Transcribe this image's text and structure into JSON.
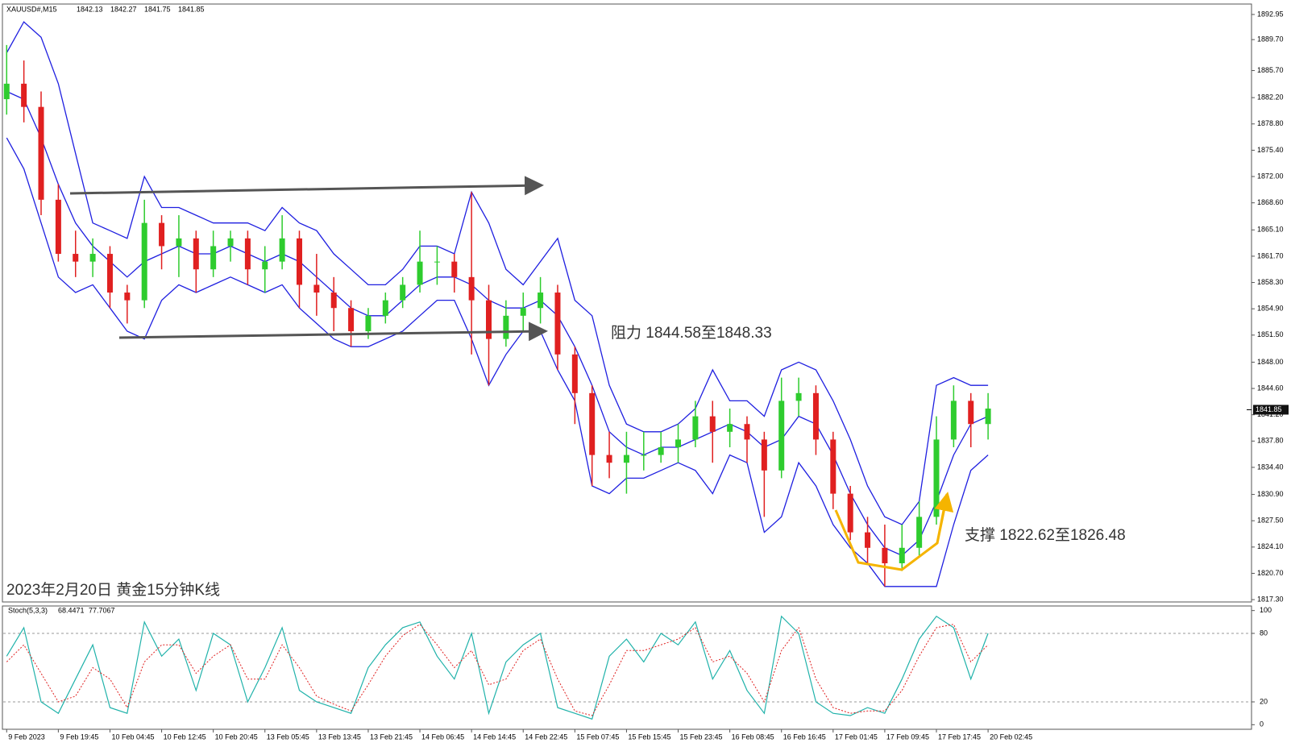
{
  "chart_data": {
    "type": "candlestick",
    "symbol": "XAUUSD#,M15",
    "ohlc": [
      1842.13,
      1842.27,
      1841.75,
      1841.85
    ],
    "title": "2023年2月20日 黄金15分钟K线",
    "annotations": [
      "阻力 1844.58至1848.33",
      "支撑 1822.62至1826.48"
    ],
    "up_color": "#2ecc2e",
    "down_color": "#e02020",
    "band_color": "#1f1fe0",
    "ylim": [
      1817.0,
      1894.3
    ],
    "yticks": [
      1892.95,
      {
        "value": 1889.7,
        "label": "1889.70"
      },
      {
        "value": 1885.7,
        "label": "1885.70"
      },
      {
        "value": 1882.2,
        "label": "1882.20"
      },
      {
        "value": 1878.8,
        "label": "1878.80"
      },
      {
        "value": 1875.4,
        "label": "1875.40"
      },
      {
        "value": 1872,
        "label": "1872.00"
      },
      {
        "value": 1868.6,
        "label": "1868.60"
      },
      {
        "value": 1865.1,
        "label": "1865.10"
      },
      {
        "value": 1861.7,
        "label": "1861.70"
      },
      {
        "value": 1858.3,
        "label": "1858.30"
      },
      {
        "value": 1854.9,
        "label": "1854.90"
      },
      {
        "value": 1851.5,
        "label": "1851.50"
      },
      {
        "value": 1848,
        "label": "1848.00"
      },
      {
        "value": 1844.6,
        "label": "1844.60"
      },
      {
        "value": 1841.2,
        "label": "1841.20"
      },
      {
        "value": 1837.8,
        "label": "1837.80"
      },
      {
        "value": 1834.4,
        "label": "1834.40"
      },
      {
        "value": 1830.9,
        "label": "1830.90"
      },
      {
        "value": 1827.5,
        "label": "1827.50"
      },
      {
        "value": 1824.1,
        "label": "1824.10"
      },
      {
        "value": 1820.7,
        "label": "1820.70"
      },
      {
        "value": 1817.3,
        "label": "1817.30"
      }
    ],
    "xlim": [
      -0.2,
      72.3
    ],
    "xticks": [
      {
        "value": 0,
        "label": "9 Feb 2023"
      },
      {
        "value": 3,
        "label": "9 Feb 19:45"
      },
      {
        "value": 6,
        "label": "10 Feb 04:45"
      },
      {
        "value": 9,
        "label": "10 Feb 12:45"
      },
      {
        "value": 12,
        "label": "10 Feb 20:45"
      },
      {
        "value": 15,
        "label": "13 Feb 05:45"
      },
      {
        "value": 18,
        "label": "13 Feb 13:45"
      },
      {
        "value": 21,
        "label": "13 Feb 21:45"
      },
      {
        "value": 24,
        "label": "14 Feb 06:45"
      },
      {
        "value": 27,
        "label": "14 Feb 14:45"
      },
      {
        "value": 30,
        "label": "14 Feb 22:45"
      },
      {
        "value": 33,
        "label": "15 Feb 07:45"
      },
      {
        "value": 36,
        "label": "15 Feb 15:45"
      },
      {
        "value": 39,
        "label": "15 Feb 23:45"
      },
      {
        "value": 42,
        "label": "16 Feb 08:45"
      },
      {
        "value": 45,
        "label": "16 Feb 16:45"
      },
      {
        "value": 48,
        "label": "17 Feb 01:45"
      },
      {
        "value": 51,
        "label": "17 Feb 09:45"
      },
      {
        "value": 54,
        "label": "17 Feb 17:45"
      },
      {
        "value": 57,
        "label": "20 Feb 02:45"
      }
    ],
    "candles": {
      "open": [
        1882,
        1884,
        1881,
        1869,
        1862,
        1861,
        1862,
        1857,
        1856,
        1866,
        1863,
        1864,
        1860,
        1863,
        1864,
        1860,
        1861,
        1864,
        1858,
        1857,
        1855,
        1852,
        1854,
        1856,
        1858,
        1861,
        1861,
        1859,
        1856,
        1851,
        1854,
        1855,
        1857,
        1849,
        1844,
        1836,
        1835,
        1836,
        1836,
        1837,
        1838,
        1841,
        1839,
        1840,
        1838,
        1834,
        1843,
        1844,
        1838,
        1831,
        1826,
        1824,
        1822,
        1824,
        1828,
        1838,
        1843,
        1840
      ],
      "high": [
        1889,
        1887,
        1883,
        1871,
        1865,
        1864,
        1863,
        1858,
        1869,
        1867,
        1867,
        1865,
        1865,
        1865,
        1865,
        1863,
        1867,
        1865,
        1862,
        1859,
        1856,
        1855,
        1857,
        1859,
        1865,
        1863,
        1862,
        1870,
        1858,
        1856,
        1857,
        1859,
        1858,
        1850,
        1845,
        1839,
        1839,
        1839,
        1839,
        1840,
        1843,
        1843,
        1842,
        1841,
        1839,
        1846,
        1846,
        1845,
        1839,
        1832,
        1828,
        1827,
        1827,
        1830,
        1841,
        1845,
        1844,
        1844
      ],
      "low": [
        1880,
        1879,
        1867,
        1861,
        1859,
        1859,
        1855,
        1853,
        1855,
        1860,
        1859,
        1857,
        1859,
        1861,
        1858,
        1857,
        1860,
        1855,
        1854,
        1852,
        1850,
        1851,
        1853,
        1855,
        1857,
        1858,
        1857,
        1849,
        1845,
        1850,
        1852,
        1853,
        1847,
        1840,
        1832,
        1833,
        1831,
        1834,
        1835,
        1835,
        1837,
        1835,
        1837,
        1835,
        1828,
        1833,
        1841,
        1836,
        1829,
        1825,
        1822,
        1819,
        1821,
        1823,
        1827,
        1837,
        1837,
        1838
      ],
      "close": [
        1884,
        1881,
        1869,
        1862,
        1861,
        1862,
        1857,
        1856,
        1866,
        1863,
        1864,
        1860,
        1863,
        1864,
        1860,
        1861,
        1864,
        1858,
        1857,
        1855,
        1852,
        1854,
        1856,
        1858,
        1861,
        1861,
        1859,
        1856,
        1851,
        1854,
        1855,
        1857,
        1849,
        1844,
        1836,
        1835,
        1836,
        1836,
        1837,
        1838,
        1841,
        1839,
        1840,
        1838,
        1834,
        1843,
        1844,
        1838,
        1831,
        1826,
        1824,
        1822,
        1824,
        1828,
        1838,
        1843,
        1840,
        1842
      ]
    },
    "bands": {
      "upper": [
        1888,
        1892,
        1890,
        1884,
        1875,
        1866,
        1865,
        1864,
        1872,
        1868,
        1868,
        1867,
        1866,
        1866,
        1866,
        1865,
        1868,
        1866,
        1865,
        1862,
        1860,
        1858,
        1858,
        1860,
        1863,
        1863,
        1862,
        1870,
        1866,
        1860,
        1858,
        1861,
        1864,
        1856,
        1854,
        1845,
        1840,
        1839,
        1839,
        1840,
        1842,
        1847,
        1843,
        1843,
        1841,
        1847,
        1848,
        1847,
        1843,
        1838,
        1832,
        1828,
        1827,
        1830,
        1845,
        1846,
        1845,
        1845
      ],
      "middle": [
        1883,
        1882,
        1877,
        1871,
        1866,
        1863,
        1861,
        1859,
        1861,
        1862,
        1863,
        1862,
        1862,
        1863,
        1862,
        1861,
        1862,
        1861,
        1859,
        1857,
        1855,
        1854,
        1854,
        1856,
        1858,
        1859,
        1859,
        1858,
        1856,
        1855,
        1855,
        1856,
        1854,
        1850,
        1845,
        1839,
        1837,
        1836,
        1837,
        1837,
        1838,
        1839,
        1840,
        1839,
        1837,
        1838,
        1841,
        1840,
        1836,
        1831,
        1827,
        1824,
        1823,
        1825,
        1830,
        1836,
        1840,
        1841
      ],
      "lower": [
        1877,
        1873,
        1866,
        1859,
        1857,
        1858,
        1855,
        1852,
        1851,
        1856,
        1858,
        1857,
        1858,
        1859,
        1858,
        1857,
        1858,
        1855,
        1853,
        1851,
        1850,
        1850,
        1851,
        1852,
        1854,
        1856,
        1856,
        1851,
        1845,
        1849,
        1852,
        1852,
        1847,
        1843,
        1832,
        1831,
        1833,
        1833,
        1834,
        1835,
        1834,
        1831,
        1836,
        1835,
        1826,
        1828,
        1835,
        1832,
        1827,
        1824,
        1822,
        1819,
        1819,
        1819,
        1819,
        1827,
        1834,
        1836
      ]
    },
    "stoch_label": "Stoch(5,3,3)",
    "stoch_values": [
      68.4471,
      77.7067
    ],
    "stoch_k": [
      60,
      85,
      20,
      10,
      40,
      70,
      15,
      10,
      90,
      60,
      75,
      30,
      80,
      70,
      20,
      50,
      85,
      30,
      20,
      15,
      10,
      50,
      70,
      85,
      90,
      60,
      40,
      80,
      10,
      55,
      70,
      80,
      15,
      10,
      5,
      60,
      75,
      55,
      80,
      70,
      90,
      40,
      65,
      30,
      10,
      95,
      80,
      20,
      10,
      8,
      15,
      10,
      40,
      75,
      95,
      85,
      40,
      80
    ],
    "stoch_d": [
      55,
      70,
      45,
      20,
      25,
      50,
      40,
      15,
      55,
      70,
      70,
      45,
      60,
      70,
      40,
      40,
      70,
      50,
      25,
      18,
      12,
      35,
      60,
      78,
      88,
      70,
      50,
      65,
      35,
      40,
      65,
      75,
      40,
      12,
      8,
      35,
      65,
      65,
      70,
      75,
      85,
      55,
      60,
      45,
      20,
      65,
      85,
      40,
      15,
      10,
      12,
      12,
      30,
      60,
      85,
      88,
      55,
      70
    ],
    "stoch_k_color": "#20b2aa",
    "stoch_d_color": "#e02020",
    "stoch_ylim": [
      -4,
      104
    ],
    "stoch_yticks": [
      100,
      80,
      20,
      0
    ],
    "stoch_levels": [
      80,
      20
    ]
  }
}
